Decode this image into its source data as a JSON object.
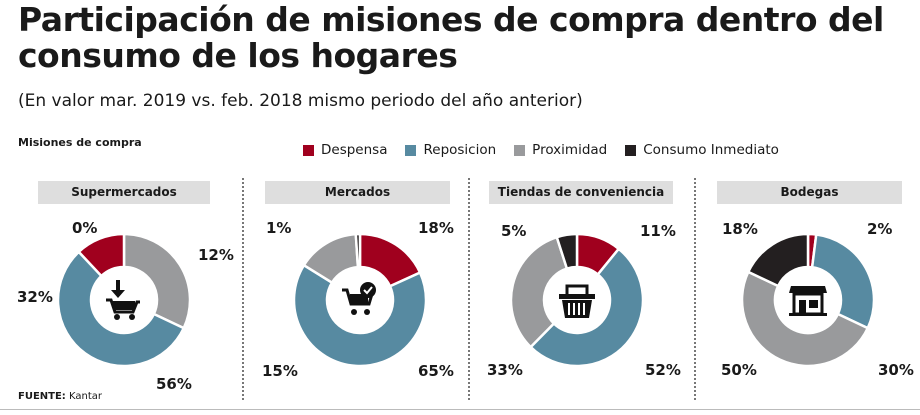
{
  "title": "Participación de misiones de compra dentro del consumo de los hogares",
  "subtitle": "(En valor  mar. 2019 vs. feb. 2018 mismo periodo del año anterior)",
  "section_label": "Misiones de compra",
  "source_label": "FUENTE:",
  "source": "Kantar",
  "chart_data": {
    "type": "pie",
    "series_names": [
      "Despensa",
      "Reposicion",
      "Proximidad",
      "Consumo Inmediato"
    ],
    "colors": [
      "#a0001e",
      "#578aa1",
      "#999a9c",
      "#231f20"
    ],
    "legend_placement": "top",
    "charts": [
      {
        "title": "Supermercados",
        "icon": "cart-download-icon",
        "values": [
          12,
          56,
          32,
          0
        ],
        "labels": [
          "12%",
          "56%",
          "32%",
          "0%"
        ]
      },
      {
        "title": "Mercados",
        "icon": "cart-check-icon",
        "values": [
          18,
          65,
          15,
          1
        ],
        "labels": [
          "18%",
          "65%",
          "15%",
          "1%"
        ]
      },
      {
        "title": "Tiendas de conveniencia",
        "icon": "basket-icon",
        "values": [
          11,
          52,
          33,
          5
        ],
        "labels": [
          "11%",
          "52%",
          "33%",
          "5%"
        ]
      },
      {
        "title": "Bodegas",
        "icon": "storefront-icon",
        "values": [
          2,
          30,
          50,
          18
        ],
        "labels": [
          "2%",
          "30%",
          "50%",
          "18%"
        ]
      }
    ]
  }
}
